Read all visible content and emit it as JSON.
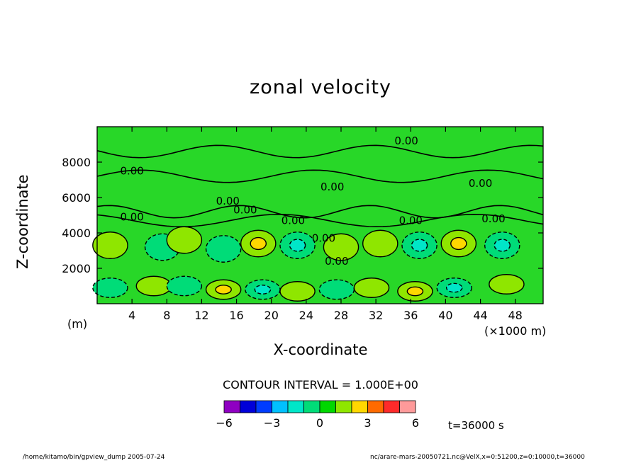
{
  "chart_data": {
    "type": "contour",
    "title": "zonal velocity",
    "xlabel": "X-coordinate",
    "ylabel": "Z-coordinate",
    "x_unit": "(×1000 m)",
    "y_unit": "(m)",
    "xlim": [
      0,
      51.2
    ],
    "ylim": [
      0,
      10000
    ],
    "x_ticks": [
      4,
      8,
      12,
      16,
      20,
      24,
      28,
      32,
      36,
      40,
      44,
      48
    ],
    "y_ticks": [
      2000,
      4000,
      6000,
      8000
    ],
    "contour_interval_label": "CONTOUR INTERVAL = 1.000E+00",
    "zero_contour_label": "0.00",
    "zero_contour_label_positions": [
      [
        4,
        7300
      ],
      [
        17,
        5100
      ],
      [
        15,
        5600
      ],
      [
        4,
        4700
      ],
      [
        22.5,
        4500
      ],
      [
        27,
        6400
      ],
      [
        35.5,
        9000
      ],
      [
        36,
        4500
      ],
      [
        44,
        6600
      ],
      [
        45.5,
        4600
      ],
      [
        26,
        3500
      ],
      [
        27.5,
        2200
      ]
    ],
    "cells": [
      {
        "x": 1.5,
        "z": 3300,
        "v": 1
      },
      {
        "x": 7.5,
        "z": 3200,
        "v": -1
      },
      {
        "x": 10,
        "z": 3600,
        "v": 1
      },
      {
        "x": 14.5,
        "z": 3100,
        "v": -1
      },
      {
        "x": 18.5,
        "z": 3400,
        "v": 2
      },
      {
        "x": 23,
        "z": 3300,
        "v": -2
      },
      {
        "x": 28,
        "z": 3200,
        "v": 1
      },
      {
        "x": 32.5,
        "z": 3400,
        "v": 1
      },
      {
        "x": 37,
        "z": 3300,
        "v": -2
      },
      {
        "x": 41.5,
        "z": 3400,
        "v": 2
      },
      {
        "x": 46.5,
        "z": 3300,
        "v": -2
      },
      {
        "x": 1.5,
        "z": 900,
        "v": -1
      },
      {
        "x": 6.5,
        "z": 1000,
        "v": 1
      },
      {
        "x": 10,
        "z": 1000,
        "v": -1
      },
      {
        "x": 14.5,
        "z": 800,
        "v": 2
      },
      {
        "x": 19,
        "z": 800,
        "v": -2
      },
      {
        "x": 23,
        "z": 700,
        "v": 1
      },
      {
        "x": 27.5,
        "z": 800,
        "v": -1
      },
      {
        "x": 31.5,
        "z": 900,
        "v": 1
      },
      {
        "x": 36.5,
        "z": 700,
        "v": 2
      },
      {
        "x": 41,
        "z": 900,
        "v": -2
      },
      {
        "x": 47,
        "z": 1100,
        "v": 1
      }
    ],
    "colorbar": {
      "ticks": [
        "−6",
        "−3",
        "0",
        "3",
        "6"
      ],
      "colors": [
        "#8f00c2",
        "#0000d9",
        "#003cff",
        "#00c0ff",
        "#00e6c8",
        "#00dc78",
        "#00d700",
        "#8fe600",
        "#ffd700",
        "#ff6a00",
        "#ff2a2a",
        "#ff9a9a"
      ]
    },
    "background_color": "#28d728",
    "time_label": "t=36000 s"
  },
  "footer": {
    "left": "/home/kitamo/bin/gpview_dump   2005-07-24",
    "right": "nc/arare-mars-20050721.nc@VelX,x=0:51200,z=0:10000,t=36000"
  }
}
